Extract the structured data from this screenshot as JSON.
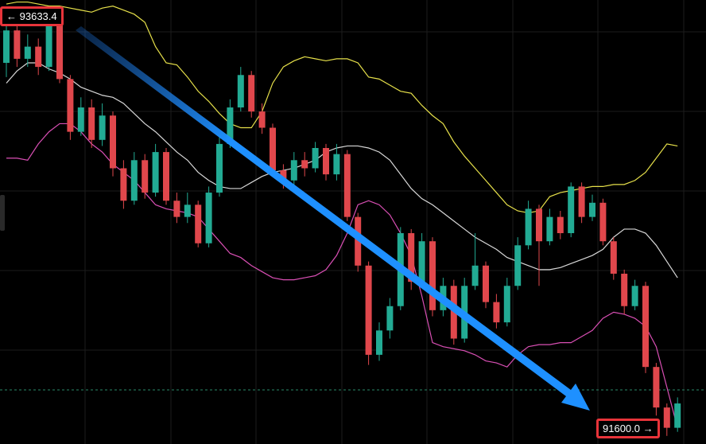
{
  "chart_data": {
    "type": "candlestick",
    "ylim": [
      91520,
      93710
    ],
    "up_color": "#22ab94",
    "down_color": "#e0474c",
    "open": [
      93400,
      93560,
      93420,
      93480,
      93380,
      93600,
      93320,
      93060,
      93180,
      93020,
      93140,
      92880,
      92720,
      92920,
      92760,
      92960,
      92720,
      92640,
      92700,
      92510,
      92760,
      93000,
      93180,
      93340,
      93160,
      93080,
      92870,
      92820,
      92920,
      92880,
      92980,
      92850,
      92950,
      92640,
      92400,
      91960,
      92080,
      92200,
      92560,
      92320,
      92520,
      92180,
      92300,
      92040,
      92300,
      92400,
      92220,
      92120,
      92300,
      92500,
      92680,
      92520,
      92640,
      92560,
      92790,
      92640,
      92710,
      92520,
      92360,
      92200,
      92300,
      91900,
      91700,
      91600
    ],
    "high": [
      93633,
      93600,
      93540,
      93520,
      93640,
      93620,
      93340,
      93230,
      93220,
      93200,
      93160,
      92920,
      92960,
      92950,
      93000,
      92980,
      92760,
      92760,
      92720,
      92790,
      93040,
      93220,
      93380,
      93360,
      93200,
      93100,
      92900,
      92960,
      92960,
      93010,
      93000,
      93000,
      92970,
      92660,
      92420,
      92120,
      92240,
      92590,
      92580,
      92560,
      92540,
      92340,
      92330,
      92340,
      92560,
      92420,
      92260,
      92340,
      92540,
      92720,
      92700,
      92680,
      92670,
      92810,
      92810,
      92750,
      92730,
      92540,
      92380,
      92330,
      92320,
      91920,
      91720,
      91750
    ],
    "low": [
      93330,
      93380,
      93380,
      93340,
      93360,
      93300,
      93020,
      93040,
      92980,
      92990,
      92840,
      92680,
      92700,
      92730,
      92740,
      92700,
      92610,
      92610,
      92490,
      92490,
      92740,
      92980,
      93160,
      93130,
      93050,
      92840,
      92780,
      92790,
      92840,
      92860,
      92820,
      92820,
      92620,
      92370,
      91910,
      91930,
      92040,
      92180,
      92280,
      92300,
      92150,
      92150,
      92010,
      92020,
      92280,
      92190,
      92090,
      92100,
      92280,
      92480,
      92300,
      92500,
      92530,
      92540,
      92610,
      92620,
      92500,
      92330,
      92160,
      92180,
      91870,
      91660,
      91560,
      91580
    ],
    "close": [
      93560,
      93420,
      93480,
      93380,
      93600,
      93320,
      93060,
      93180,
      93020,
      93140,
      92880,
      92720,
      92920,
      92760,
      92960,
      92720,
      92640,
      92700,
      92510,
      92760,
      93000,
      93180,
      93340,
      93160,
      93080,
      92870,
      92820,
      92920,
      92880,
      92980,
      92850,
      92950,
      92640,
      92400,
      91960,
      92080,
      92200,
      92560,
      92320,
      92520,
      92180,
      92300,
      92040,
      92300,
      92400,
      92220,
      92120,
      92300,
      92500,
      92680,
      92520,
      92640,
      92560,
      92790,
      92640,
      92710,
      92520,
      92360,
      92200,
      92300,
      91900,
      91700,
      91600,
      91720
    ],
    "overlays": [
      {
        "color": "#e6e04a",
        "values": [
          93690,
          93700,
          93700,
          93690,
          93680,
          93680,
          93670,
          93660,
          93650,
          93670,
          93680,
          93660,
          93640,
          93600,
          93480,
          93400,
          93390,
          93330,
          93260,
          93210,
          93150,
          93100,
          93080,
          93080,
          93160,
          93300,
          93380,
          93410,
          93430,
          93420,
          93410,
          93420,
          93420,
          93400,
          93330,
          93320,
          93290,
          93260,
          93250,
          93190,
          93140,
          93100,
          93010,
          92940,
          92880,
          92820,
          92760,
          92700,
          92670,
          92660,
          92670,
          92740,
          92760,
          92770,
          92780,
          92790,
          92790,
          92800,
          92800,
          92820,
          92860,
          92930,
          93000,
          92990
        ]
      },
      {
        "color": "#d8d8d8",
        "values": [
          93300,
          93360,
          93400,
          93400,
          93370,
          93350,
          93320,
          93280,
          93260,
          93240,
          93230,
          93200,
          93150,
          93100,
          93060,
          93010,
          92960,
          92920,
          92860,
          92820,
          92790,
          92780,
          92780,
          92810,
          92840,
          92860,
          92870,
          92880,
          92900,
          92920,
          92960,
          92980,
          92990,
          92990,
          92980,
          92960,
          92920,
          92850,
          92780,
          92730,
          92700,
          92660,
          92620,
          92580,
          92540,
          92510,
          92480,
          92440,
          92420,
          92400,
          92380,
          92380,
          92390,
          92410,
          92430,
          92450,
          92480,
          92540,
          92580,
          92580,
          92560,
          92500,
          92420,
          92340
        ]
      },
      {
        "color": "#d94fb4",
        "values": [
          92930,
          92930,
          92920,
          93000,
          93060,
          93100,
          93100,
          93060,
          93000,
          92960,
          92900,
          92860,
          92820,
          92760,
          92700,
          92680,
          92670,
          92660,
          92640,
          92580,
          92520,
          92460,
          92440,
          92400,
          92370,
          92340,
          92330,
          92330,
          92340,
          92350,
          92380,
          92450,
          92560,
          92700,
          92720,
          92700,
          92650,
          92560,
          92450,
          92250,
          92020,
          92000,
          91990,
          91980,
          91960,
          91930,
          91920,
          91900,
          91960,
          92000,
          92010,
          92010,
          92020,
          92020,
          92050,
          92080,
          92140,
          92170,
          92160,
          92140,
          92100,
          92000,
          91800,
          91600
        ]
      }
    ],
    "price_line": 91787,
    "start_label": 93633.4,
    "end_label": {
      "value": 91600,
      "label": "91600.0"
    }
  }
}
